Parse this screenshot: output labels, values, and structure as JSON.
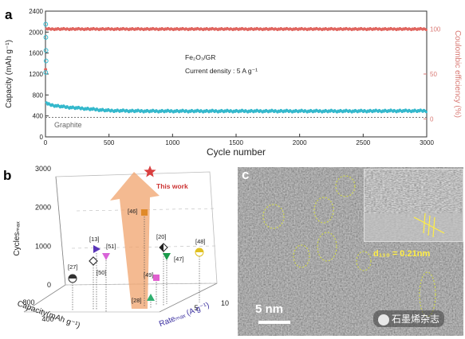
{
  "chart_data": [
    {
      "panel": "a",
      "type": "scatter",
      "xlabel": "Cycle number",
      "ylabel_left": "Capacity (mAh g⁻¹)",
      "ylabel_right": "Coulombic efficiency (%)",
      "xlim": [
        0,
        3000
      ],
      "ylim_left": [
        0,
        2400
      ],
      "ylim_right": [
        -20,
        120
      ],
      "x_ticks": [
        0,
        500,
        1000,
        1500,
        2000,
        2500,
        3000
      ],
      "y_ticks_left": [
        0,
        400,
        800,
        1200,
        1600,
        2000,
        2400
      ],
      "y_ticks_right": [
        0,
        50,
        100
      ],
      "annotation_material": "Fe₂O₃/GR",
      "annotation_density": "Current density : 5 A g⁻¹",
      "reference_label": "Graphite",
      "reference_value": 372,
      "capacity_series": [
        [
          1,
          1230
        ],
        [
          5,
          650
        ],
        [
          20,
          620
        ],
        [
          60,
          600
        ],
        [
          150,
          570
        ],
        [
          300,
          540
        ],
        [
          500,
          500
        ],
        [
          800,
          490
        ],
        [
          1200,
          490
        ],
        [
          1600,
          490
        ],
        [
          2000,
          490
        ],
        [
          2400,
          490
        ],
        [
          2800,
          495
        ],
        [
          3000,
          495
        ]
      ],
      "initial_capacity_points": [
        [
          2,
          2150
        ],
        [
          3,
          1900
        ],
        [
          4,
          1650
        ],
        [
          5,
          1450
        ],
        [
          2,
          1230
        ]
      ],
      "efficiency_value": 100,
      "efficiency_first": 55,
      "colors": {
        "capacity": "#34b8cc",
        "efficiency": "#e0655f",
        "axis_right": "#d97a75"
      }
    },
    {
      "panel": "b",
      "type": "scatter",
      "xlabel": "Rateₘₐₓ (A g⁻¹)",
      "ylabel": "Capacity(mAh g⁻¹)",
      "zlabel": "Cyclesₘₐₓ",
      "z_ticks": [
        0,
        1000,
        2000,
        3000
      ],
      "capacity_ticks": [
        400,
        800
      ],
      "rate_ticks": [
        5,
        10
      ],
      "highlight_label": "This work",
      "points": [
        {
          "label": "This work",
          "marker": "star",
          "color": "#d94040"
        },
        {
          "label": "[46]",
          "marker": "square",
          "color": "#e08a2a"
        },
        {
          "label": "[13]",
          "marker": "triangle-right",
          "color": "#5a35b8"
        },
        {
          "label": "[51]",
          "marker": "triangle-down",
          "color": "#d864d8"
        },
        {
          "label": "[27]",
          "marker": "half-circle",
          "color": "#333333"
        },
        {
          "label": "[50]",
          "marker": "diamond-open",
          "color": "#333333"
        },
        {
          "label": "[20]",
          "marker": "half-diamond",
          "color": "#222222"
        },
        {
          "label": "[47]",
          "marker": "triangle-down",
          "color": "#1a9a4a"
        },
        {
          "label": "[48]",
          "marker": "half-circle",
          "color": "#e0c020"
        },
        {
          "label": "[49]",
          "marker": "square",
          "color": "#e060d0"
        },
        {
          "label": "[28]",
          "marker": "triangle",
          "color": "#30b070"
        }
      ]
    }
  ],
  "panel_c": {
    "letter": "c",
    "d_spacing": "d₁₁₀ = 0.21nm",
    "scale_bar": "5 nm",
    "watermark": "石墨烯杂志"
  },
  "panel_letters": {
    "a": "a",
    "b": "b"
  }
}
